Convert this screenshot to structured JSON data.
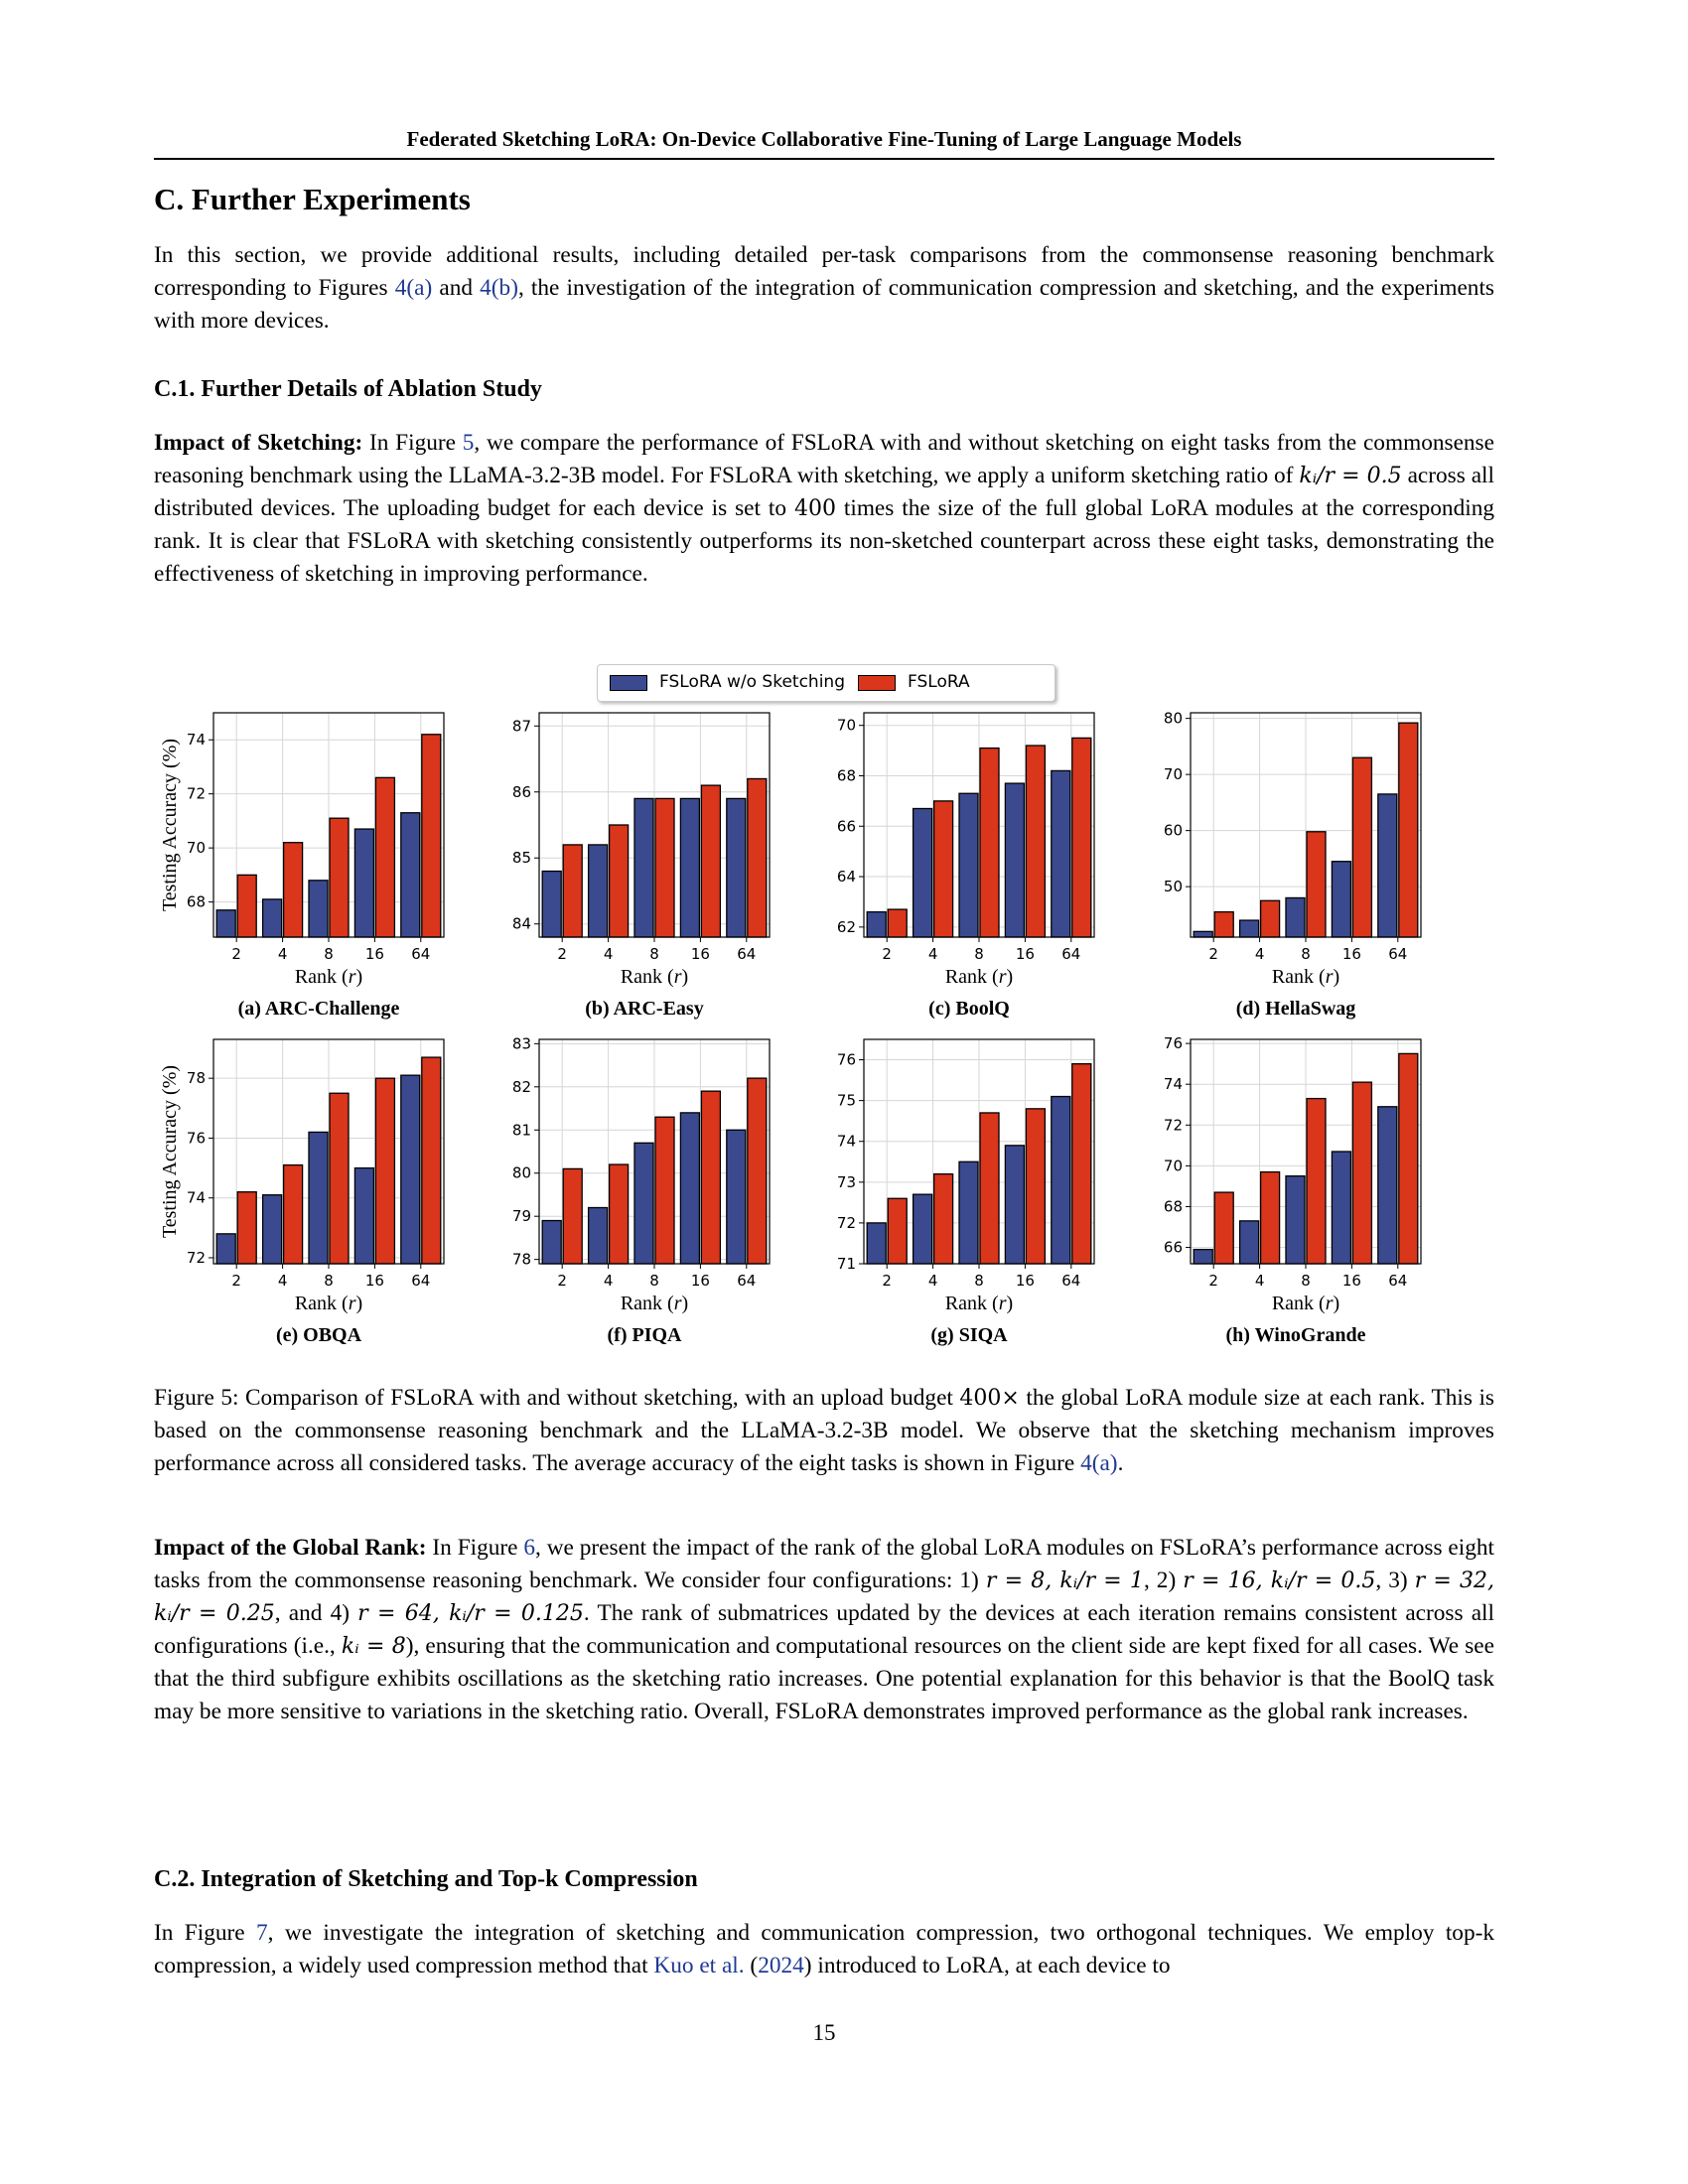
{
  "running_head": "Federated Sketching LoRA: On-Device Collaborative Fine-Tuning of Large Language Models",
  "section_title": "C. Further Experiments",
  "intro": {
    "t1": "In this section, we provide additional results, including detailed per-task comparisons from the commonsense reasoning benchmark corresponding to Figures ",
    "link1": "4(a)",
    "t2": " and ",
    "link2": "4(b)",
    "t3": ", the investigation of the integration of communication compression and sketching, and the experiments with more devices."
  },
  "sub1_title": "C.1. Further Details of Ablation Study",
  "sketch_para": {
    "lead": "Impact of Sketching:",
    "t1": " In Figure ",
    "link1": "5",
    "t2": ", we compare the performance of FSLoRA with and without sketching on eight tasks from the commonsense reasoning benchmark using the LLaMA-3.2-3B model. For FSLoRA with sketching, we apply a uniform sketching ratio of ",
    "math1": "kᵢ/r = 0.5",
    "t3": " across all distributed devices. The uploading budget for each device is set to ",
    "math2": "400",
    "t4": " times the size of the full global LoRA modules at the corresponding rank. It is clear that FSLoRA with sketching consistently outperforms its non-sketched counterpart across these eight tasks, demonstrating the effectiveness of sketching in improving performance."
  },
  "figure_caption": {
    "t1": "Figure 5: Comparison of FSLoRA with and without sketching, with an upload budget ",
    "math1": "400×",
    "t2": " the global LoRA module size at each rank. This is based on the commonsense reasoning benchmark and the LLaMA-3.2-3B model. We observe that the sketching mechanism improves performance across all considered tasks. The average accuracy of the eight tasks is shown in Figure ",
    "link1": "4(a)",
    "t3": "."
  },
  "rank_para": {
    "lead": "Impact of the Global Rank:",
    "t1": " In Figure ",
    "link1": "6",
    "t2": ", we present the impact of the rank of the global LoRA modules on FSLoRA’s performance across eight tasks from the commonsense reasoning benchmark. We consider four configurations: 1) ",
    "math1": "r = 8, kᵢ/r = 1",
    "t3": ", 2) ",
    "math2": "r = 16, kᵢ/r = 0.5",
    "t4": ", 3) ",
    "math3": "r = 32, kᵢ/r = 0.25",
    "t5": ", and 4) ",
    "math4": "r = 64, kᵢ/r = 0.125",
    "t6": ". The rank of submatrices updated by the devices at each iteration remains consistent across all configurations (i.e., ",
    "math5": "kᵢ = 8",
    "t7": "), ensuring that the communication and computational resources on the client side are kept fixed for all cases. We see that the third subfigure exhibits oscillations as the sketching ratio increases. One potential explanation for this behavior is that the BoolQ task may be more sensitive to variations in the sketching ratio. Overall, FSLoRA demonstrates improved performance as the global rank increases."
  },
  "sub2_title": "C.2. Integration of Sketching and Top-k Compression",
  "topk_para": {
    "t1": "In Figure ",
    "link1": "7",
    "t2": ", we investigate the integration of sketching and communication compression, two orthogonal techniques. We employ top-k compression, a widely used compression method that ",
    "link2": "Kuo et al.",
    "t3": " (",
    "link3": "2024",
    "t4": ") introduced to LoRA, at each device to"
  },
  "page_number": "15",
  "legend": {
    "s1": "FSLoRA w/o Sketching",
    "s2": "FSLoRA"
  },
  "colors": {
    "s1": "#3b4a8f",
    "s2": "#d9361c",
    "grid": "#d6d6d6"
  },
  "chart_data": [
    {
      "type": "bar",
      "title": "(a) ARC-Challenge",
      "xlabel": "Rank (r)",
      "ylabel": "Testing Accuracy (%)",
      "categories": [
        "2",
        "4",
        "8",
        "16",
        "64"
      ],
      "ylim": [
        66.7,
        75.0
      ],
      "yticks": [
        68,
        70,
        72,
        74
      ],
      "series": [
        {
          "name": "FSLoRA w/o Sketching",
          "values": [
            67.7,
            68.1,
            68.8,
            70.7,
            71.3
          ]
        },
        {
          "name": "FSLoRA",
          "values": [
            69.0,
            70.2,
            71.1,
            72.6,
            74.2
          ]
        }
      ]
    },
    {
      "type": "bar",
      "title": "(b) ARC-Easy",
      "xlabel": "Rank (r)",
      "ylabel": "",
      "categories": [
        "2",
        "4",
        "8",
        "16",
        "64"
      ],
      "ylim": [
        83.8,
        87.2
      ],
      "yticks": [
        84,
        85,
        86,
        87
      ],
      "series": [
        {
          "name": "FSLoRA w/o Sketching",
          "values": [
            84.8,
            85.2,
            85.9,
            85.9,
            85.9
          ]
        },
        {
          "name": "FSLoRA",
          "values": [
            85.2,
            85.5,
            85.9,
            86.1,
            86.2
          ]
        }
      ]
    },
    {
      "type": "bar",
      "title": "(c) BoolQ",
      "xlabel": "Rank (r)",
      "ylabel": "",
      "categories": [
        "2",
        "4",
        "8",
        "16",
        "64"
      ],
      "ylim": [
        61.6,
        70.5
      ],
      "yticks": [
        62,
        64,
        66,
        68,
        70
      ],
      "series": [
        {
          "name": "FSLoRA w/o Sketching",
          "values": [
            62.6,
            66.7,
            67.3,
            67.7,
            68.2
          ]
        },
        {
          "name": "FSLoRA",
          "values": [
            62.7,
            67.0,
            69.1,
            69.2,
            69.5
          ]
        }
      ]
    },
    {
      "type": "bar",
      "title": "(d) HellaSwag",
      "xlabel": "Rank (r)",
      "ylabel": "",
      "categories": [
        "2",
        "4",
        "8",
        "16",
        "64"
      ],
      "ylim": [
        41.0,
        81.0
      ],
      "yticks": [
        50,
        60,
        70,
        80
      ],
      "series": [
        {
          "name": "FSLoRA w/o Sketching",
          "values": [
            42.0,
            44.0,
            48.0,
            54.5,
            66.5
          ]
        },
        {
          "name": "FSLoRA",
          "values": [
            45.5,
            47.5,
            59.8,
            73.0,
            79.2
          ]
        }
      ]
    },
    {
      "type": "bar",
      "title": "(e) OBQA",
      "xlabel": "Rank (r)",
      "ylabel": "Testing Accuracy (%)",
      "categories": [
        "2",
        "4",
        "8",
        "16",
        "64"
      ],
      "ylim": [
        71.8,
        79.3
      ],
      "yticks": [
        72,
        74,
        76,
        78
      ],
      "series": [
        {
          "name": "FSLoRA w/o Sketching",
          "values": [
            72.8,
            74.1,
            76.2,
            75.0,
            78.1
          ]
        },
        {
          "name": "FSLoRA",
          "values": [
            74.2,
            75.1,
            77.5,
            78.0,
            78.7
          ]
        }
      ]
    },
    {
      "type": "bar",
      "title": "(f) PIQA",
      "xlabel": "Rank (r)",
      "ylabel": "",
      "categories": [
        "2",
        "4",
        "8",
        "16",
        "64"
      ],
      "ylim": [
        77.9,
        83.1
      ],
      "yticks": [
        78,
        79,
        80,
        81,
        82,
        83
      ],
      "series": [
        {
          "name": "FSLoRA w/o Sketching",
          "values": [
            78.9,
            79.2,
            80.7,
            81.4,
            81.0
          ]
        },
        {
          "name": "FSLoRA",
          "values": [
            80.1,
            80.2,
            81.3,
            81.9,
            82.2
          ]
        }
      ]
    },
    {
      "type": "bar",
      "title": "(g) SIQA",
      "xlabel": "Rank (r)",
      "ylabel": "",
      "categories": [
        "2",
        "4",
        "8",
        "16",
        "64"
      ],
      "ylim": [
        71.0,
        76.5
      ],
      "yticks": [
        71,
        72,
        73,
        74,
        75,
        76
      ],
      "series": [
        {
          "name": "FSLoRA w/o Sketching",
          "values": [
            72.0,
            72.7,
            73.5,
            73.9,
            75.1
          ]
        },
        {
          "name": "FSLoRA",
          "values": [
            72.6,
            73.2,
            74.7,
            74.8,
            75.9
          ]
        }
      ]
    },
    {
      "type": "bar",
      "title": "(h) WinoGrande",
      "xlabel": "Rank (r)",
      "ylabel": "",
      "categories": [
        "2",
        "4",
        "8",
        "16",
        "64"
      ],
      "ylim": [
        65.2,
        76.2
      ],
      "yticks": [
        66,
        68,
        70,
        72,
        74,
        76
      ],
      "series": [
        {
          "name": "FSLoRA w/o Sketching",
          "values": [
            65.9,
            67.3,
            69.5,
            70.7,
            72.9
          ]
        },
        {
          "name": "FSLoRA",
          "values": [
            68.7,
            69.7,
            73.3,
            74.1,
            75.5
          ]
        }
      ]
    }
  ]
}
